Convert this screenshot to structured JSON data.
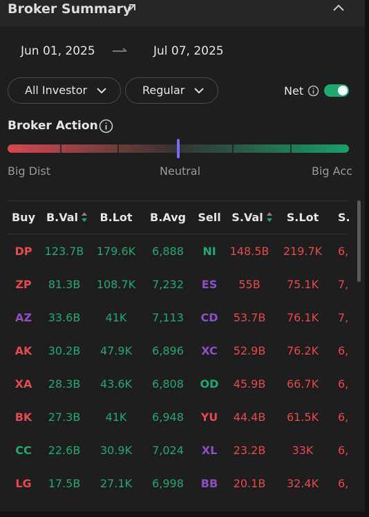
{
  "header": {
    "title": "Broker Summary"
  },
  "date_range": {
    "start": "Jun 01, 2025",
    "end": "Jul 07, 2025"
  },
  "filters": [
    "All Investor",
    "Regular"
  ],
  "net_toggle": {
    "label": "Net",
    "on": true
  },
  "broker_action": {
    "title": "Broker Action",
    "labels": [
      "Big Dist",
      "Neutral",
      "Big Acc"
    ]
  },
  "table": {
    "columns": [
      "Buy",
      "B.Val",
      "B.Lot",
      "B.Avg",
      "Sell",
      "S.Val",
      "S.Lot",
      "S."
    ],
    "rows": [
      [
        "DP",
        "123.7B",
        "179.6K",
        "6,888",
        "NI",
        "148.5B",
        "219.7K",
        "6,"
      ],
      [
        "ZP",
        "81.3B",
        "108.7K",
        "7,232",
        "ES",
        "55B",
        "75.1K",
        "7,"
      ],
      [
        "AZ",
        "33.6B",
        "41K",
        "7,113",
        "CD",
        "53.7B",
        "76.1K",
        "7,"
      ],
      [
        "AK",
        "30.2B",
        "47.9K",
        "6,896",
        "XC",
        "52.9B",
        "76.2K",
        "6,"
      ],
      [
        "XA",
        "28.3B",
        "43.6K",
        "6,808",
        "OD",
        "45.9B",
        "66.7K",
        "6,"
      ],
      [
        "BK",
        "27.3B",
        "41K",
        "6,948",
        "YU",
        "44.4B",
        "61.5K",
        "6,"
      ],
      [
        "CC",
        "22.6B",
        "30.9K",
        "7,024",
        "XL",
        "23.2B",
        "33K",
        "6,"
      ],
      [
        "LG",
        "17.5B",
        "27.1K",
        "6,998",
        "BB",
        "20.1B",
        "32.4K",
        "6,"
      ]
    ],
    "buy_colors": [
      "#e5484d",
      "#e5484d",
      "#8e4ec6",
      "#e5484d",
      "#e5484d",
      "#e5484d",
      "#1fa971",
      "#e5484d"
    ],
    "sell_colors": [
      "#1fa971",
      "#8e4ec6",
      "#8e4ec6",
      "#8e4ec6",
      "#1fa971",
      "#e5484d",
      "#8e4ec6",
      "#8e4ec6"
    ],
    "buy_value_color": "#1fa971",
    "sell_value_color": "#e5484d"
  }
}
